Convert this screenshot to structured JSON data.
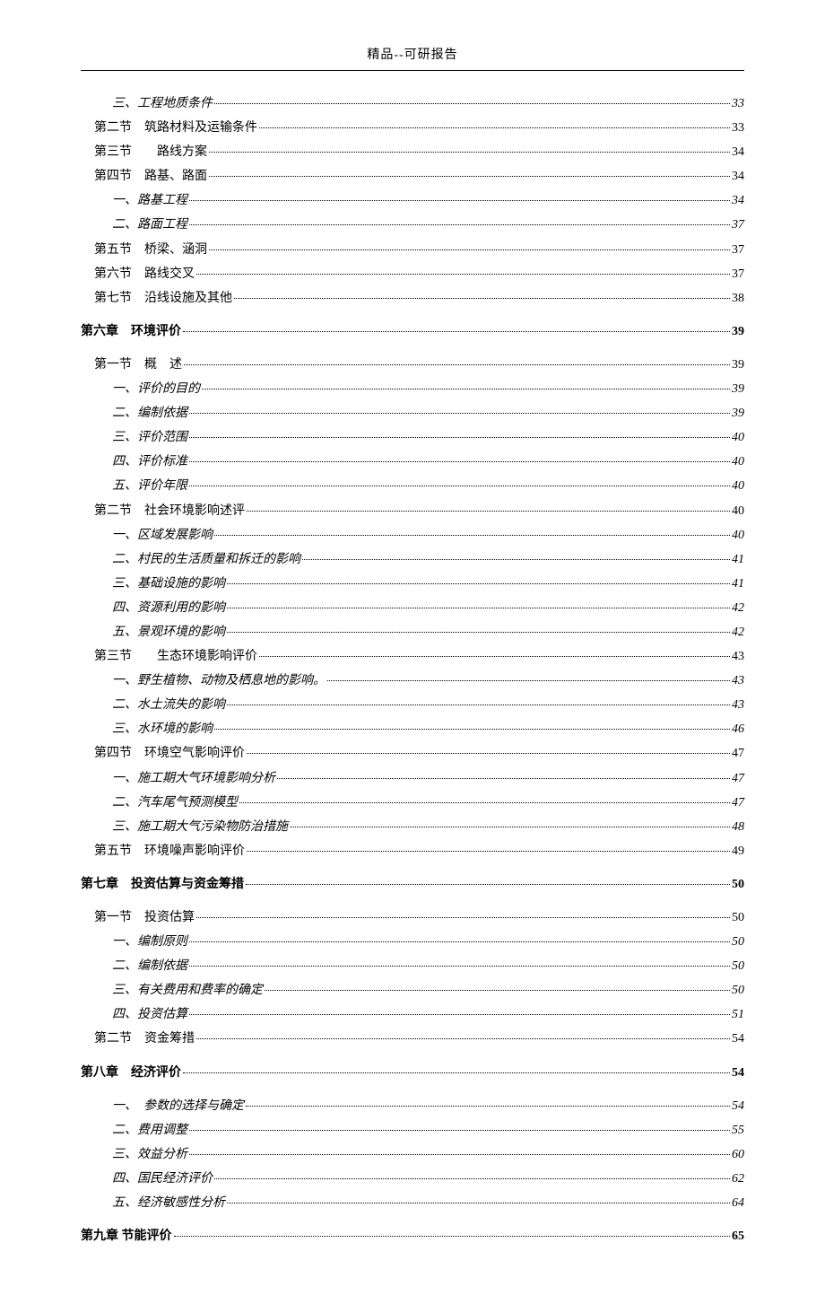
{
  "header": {
    "title": "精品--可研报告"
  },
  "toc": [
    {
      "level": 3,
      "label": "三、工程地质条件",
      "page": "33"
    },
    {
      "level": 2,
      "label": "第二节　筑路材料及运输条件",
      "page": "33"
    },
    {
      "level": 2,
      "label": "第三节　　路线方案",
      "page": "34"
    },
    {
      "level": 2,
      "label": "第四节　路基、路面",
      "page": "34"
    },
    {
      "level": 3,
      "label": "一、路基工程",
      "page": "34"
    },
    {
      "level": 3,
      "label": "二、路面工程",
      "page": "37"
    },
    {
      "level": 2,
      "label": "第五节　桥梁、涵洞",
      "page": "37"
    },
    {
      "level": 2,
      "label": "第六节　路线交叉",
      "page": "37"
    },
    {
      "level": 2,
      "label": "第七节　沿线设施及其他",
      "page": "38"
    },
    {
      "level": 1,
      "label": "第六章　环境评价",
      "page": "39"
    },
    {
      "level": 2,
      "label": "第一节　概　述",
      "page": "39"
    },
    {
      "level": 3,
      "label": "一、评价的目的",
      "page": "39"
    },
    {
      "level": 3,
      "label": "二、编制依据",
      "page": "39"
    },
    {
      "level": 3,
      "label": "三、评价范围",
      "page": "40"
    },
    {
      "level": 3,
      "label": "四、评价标准",
      "page": "40"
    },
    {
      "level": 3,
      "label": "五、评价年限",
      "page": "40"
    },
    {
      "level": 2,
      "label": "第二节　社会环境影响述评",
      "page": "40"
    },
    {
      "level": 3,
      "label": "一、区域发展影响",
      "page": "40"
    },
    {
      "level": 3,
      "label": "二、村民的生活质量和拆迁的影响",
      "page": "41"
    },
    {
      "level": 3,
      "label": "三、基础设施的影响",
      "page": "41"
    },
    {
      "level": 3,
      "label": "四、资源利用的影响",
      "page": "42"
    },
    {
      "level": 3,
      "label": "五、景观环境的影响",
      "page": "42"
    },
    {
      "level": 2,
      "label": "第三节　　生态环境影响评价",
      "page": "43"
    },
    {
      "level": 3,
      "label": "一、野生植物、动物及栖息地的影响。",
      "page": "43"
    },
    {
      "level": 3,
      "label": "二、水土流失的影响",
      "page": "43"
    },
    {
      "level": 3,
      "label": "三、水环境的影响",
      "page": "46"
    },
    {
      "level": 2,
      "label": "第四节　环境空气影响评价",
      "page": "47"
    },
    {
      "level": 3,
      "label": "一、施工期大气环境影响分析",
      "page": "47"
    },
    {
      "level": 3,
      "label": "二、汽车尾气预测模型",
      "page": "47"
    },
    {
      "level": 3,
      "label": "三、施工期大气污染物防治措施",
      "page": "48"
    },
    {
      "level": 2,
      "label": "第五节　环境噪声影响评价",
      "page": "49"
    },
    {
      "level": 1,
      "label": "第七章　投资估算与资金筹措",
      "page": "50"
    },
    {
      "level": 2,
      "label": "第一节　投资估算",
      "page": "50"
    },
    {
      "level": 3,
      "label": "一、编制原则",
      "page": "50"
    },
    {
      "level": 3,
      "label": "二、编制依据",
      "page": "50"
    },
    {
      "level": 3,
      "label": "三、有关费用和费率的确定",
      "page": "50"
    },
    {
      "level": 3,
      "label": "四、投资估算",
      "page": "51"
    },
    {
      "level": 2,
      "label": "第二节　资金筹措",
      "page": "54"
    },
    {
      "level": 1,
      "label": "第八章　经济评价",
      "page": "54"
    },
    {
      "level": 3,
      "label": "一、　参数的选择与确定",
      "page": "54"
    },
    {
      "level": 3,
      "label": "二、费用调整",
      "page": "55"
    },
    {
      "level": 3,
      "label": "三、效益分析",
      "page": "60"
    },
    {
      "level": 3,
      "label": "四、国民经济评价",
      "page": "62"
    },
    {
      "level": 3,
      "label": "五、经济敏感性分析",
      "page": "64"
    },
    {
      "level": 1,
      "label": "第九章 节能评价",
      "page": "65"
    }
  ]
}
